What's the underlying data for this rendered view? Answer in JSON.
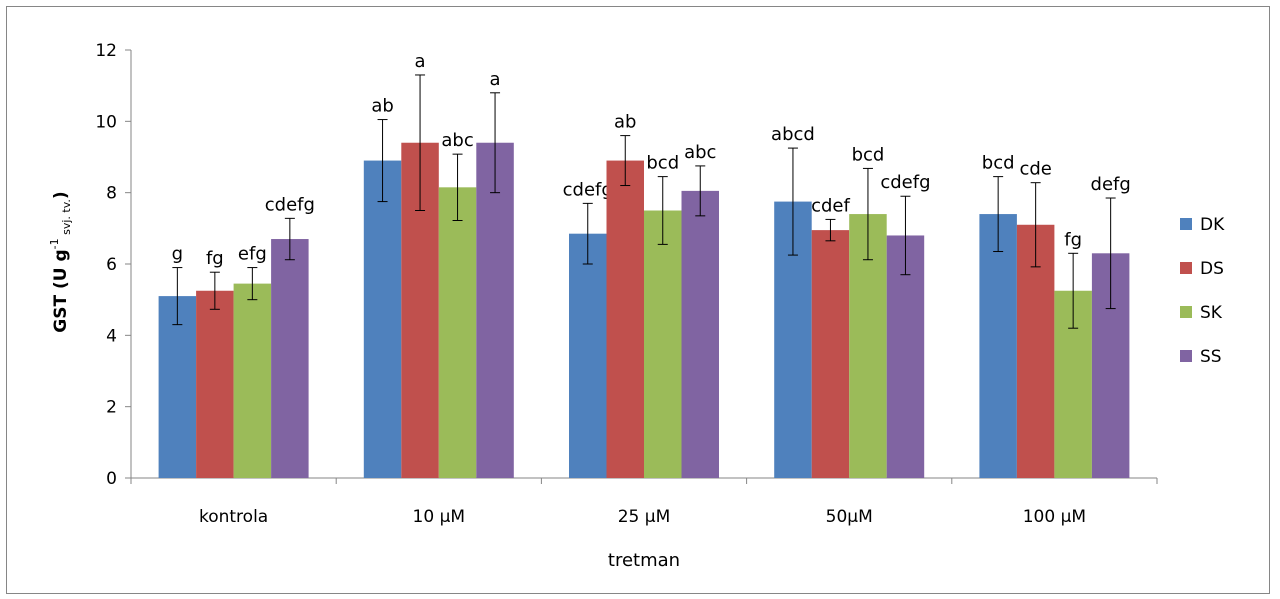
{
  "chart_data": {
    "type": "bar",
    "categories": [
      "kontrola",
      "10 μM",
      "25 μM",
      "50μM",
      "100 μM"
    ],
    "xlabel": "tretman",
    "ylabel": {
      "main": "GST (U g",
      "sup": "-1",
      "sub": " svj. tv.",
      "close": ")"
    },
    "ylim": [
      0,
      12
    ],
    "yticks": [
      "0",
      "2",
      "4",
      "6",
      "8",
      "10",
      "12"
    ],
    "legend_position": "right",
    "grid": false,
    "series": [
      {
        "name": "DK",
        "color": "#4f81bd",
        "values": [
          5.1,
          8.9,
          6.85,
          7.75,
          7.4
        ],
        "errors": [
          0.8,
          1.15,
          0.85,
          1.5,
          1.05
        ],
        "labels": [
          "g",
          "ab",
          "cdefg",
          "abcd",
          "bcd"
        ]
      },
      {
        "name": "DS",
        "color": "#c0504d",
        "values": [
          5.25,
          9.4,
          8.9,
          6.95,
          7.1
        ],
        "errors": [
          0.52,
          1.9,
          0.7,
          0.3,
          1.18
        ],
        "labels": [
          "fg",
          "a",
          "ab",
          "cdef",
          "cde"
        ]
      },
      {
        "name": "SK",
        "color": "#9bbb59",
        "values": [
          5.45,
          8.15,
          7.5,
          7.4,
          5.25
        ],
        "errors": [
          0.45,
          0.93,
          0.95,
          1.28,
          1.05
        ],
        "labels": [
          "efg",
          "abc",
          "bcd",
          "bcd",
          "fg"
        ]
      },
      {
        "name": "SS",
        "color": "#8064a2",
        "values": [
          6.7,
          9.4,
          8.05,
          6.8,
          6.3
        ],
        "errors": [
          0.58,
          1.4,
          0.7,
          1.1,
          1.55
        ],
        "labels": [
          "cdefg",
          "a",
          "abc",
          "cdefg",
          "defg"
        ]
      }
    ]
  }
}
